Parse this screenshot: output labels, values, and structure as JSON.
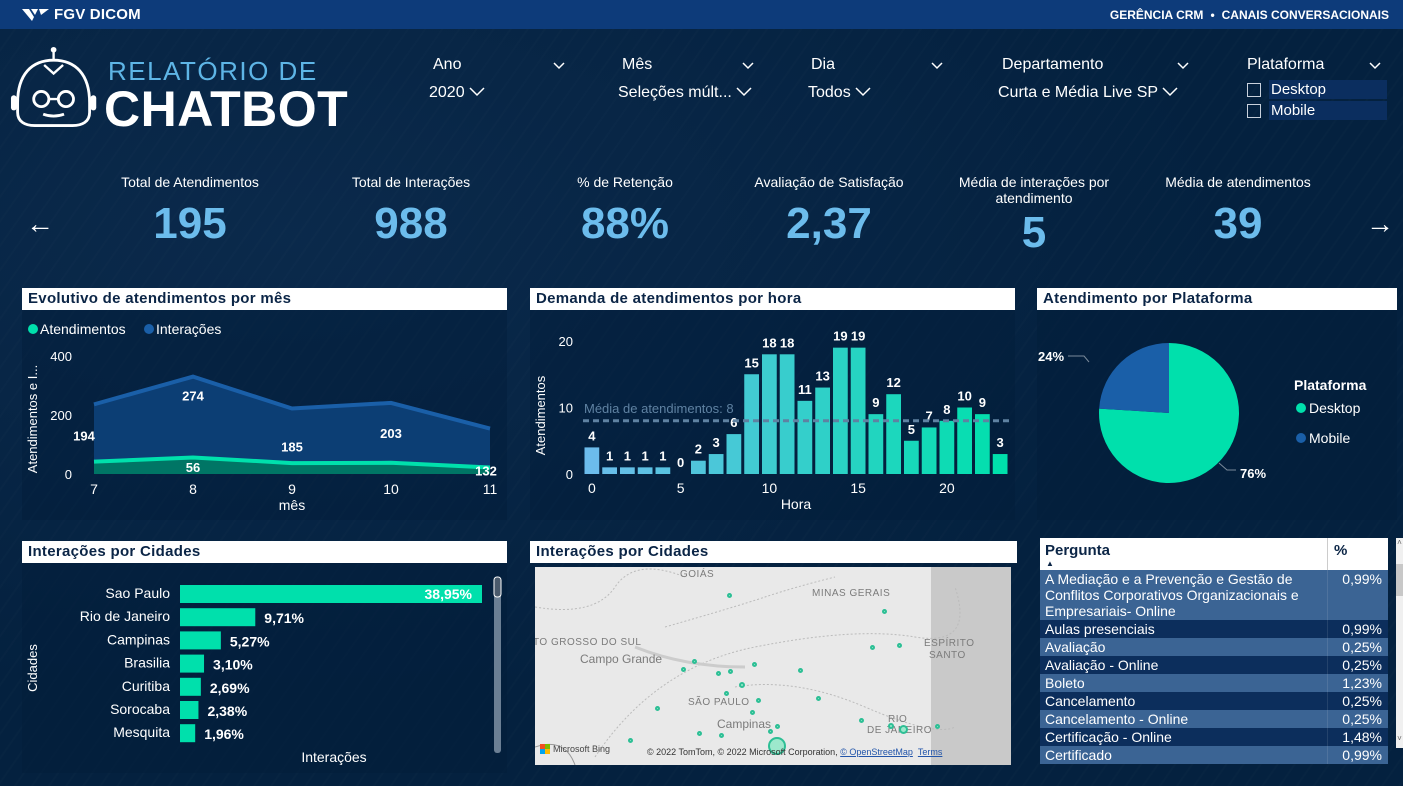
{
  "topbar": {
    "brand": "FGV DICOM",
    "right_part1": "GERÊNCIA CRM",
    "separator": "•",
    "right_part2": "CANAIS CONVERSACIONAIS"
  },
  "logo": {
    "line1": "RELATÓRIO DE",
    "line2": "CHATBOT",
    "icon": "robot-icon"
  },
  "filters": {
    "ano": {
      "label": "Ano",
      "value": "2020"
    },
    "mes": {
      "label": "Mês",
      "value": "Seleções múlt..."
    },
    "dia": {
      "label": "Dia",
      "value": "Todos"
    },
    "departamento": {
      "label": "Departamento",
      "value": "Curta e Média Live SP"
    },
    "plataforma": {
      "label": "Plataforma",
      "options": [
        "Desktop",
        "Mobile"
      ]
    }
  },
  "kpis": [
    {
      "label": "Total de Atendimentos",
      "value": "195"
    },
    {
      "label": "Total de Interações",
      "value": "988"
    },
    {
      "label": "% de Retenção",
      "value": "88%"
    },
    {
      "label": "Avaliação de Satisfação",
      "value": "2,37"
    },
    {
      "label": "Média de interações por atendimento",
      "value": "5"
    },
    {
      "label": "Média de atendimentos",
      "value": "39"
    }
  ],
  "nav": {
    "prev": "←",
    "next": "→"
  },
  "cards": {
    "monthly": "Evolutivo de atendimentos por mês",
    "hourly": "Demanda de atendimentos por hora",
    "platform": "Atendimento por Plataforma",
    "cities_bar": "Interações por Cidades",
    "cities_map": "Interações por Cidades"
  },
  "colors": {
    "teal": "#00e0ac",
    "blue": "#1a5fa8",
    "kpi_value": "#6cbcec",
    "background": "#04213f",
    "topbar": "#0d3b7a"
  },
  "chart_data": [
    {
      "type": "area",
      "title": "Evolutivo de atendimentos por mês",
      "stacked": true,
      "x": [
        7,
        8,
        9,
        10,
        11
      ],
      "xlabel": "mês",
      "ylabel": "Atendimentos e I...",
      "ylim": [
        0,
        400
      ],
      "yticks": [
        0,
        200,
        400
      ],
      "legend": "top-left",
      "series": [
        {
          "name": "Atendimentos",
          "color": "#00e0ac",
          "values": [
            42,
            56,
            37,
            38,
            22
          ],
          "labels": [
            null,
            "56",
            null,
            null,
            null
          ]
        },
        {
          "name": "Interações",
          "color": "#1a5fa8",
          "values": [
            194,
            274,
            185,
            203,
            132
          ],
          "labels": [
            "194",
            "274",
            "185",
            "203",
            "132"
          ]
        }
      ]
    },
    {
      "type": "bar",
      "title": "Demanda de atendimentos por hora",
      "x": [
        0,
        1,
        2,
        3,
        4,
        5,
        6,
        7,
        8,
        9,
        10,
        11,
        12,
        13,
        14,
        15,
        16,
        17,
        18,
        19,
        20,
        21,
        22,
        23
      ],
      "values": [
        4,
        1,
        1,
        1,
        1,
        0,
        2,
        3,
        6,
        15,
        18,
        18,
        11,
        13,
        19,
        19,
        9,
        12,
        5,
        7,
        8,
        10,
        9,
        3
      ],
      "xlabel": "Hora",
      "ylabel": "Atendimentos",
      "ylim": [
        0,
        21
      ],
      "yticks": [
        0,
        10,
        20
      ],
      "xticks": [
        0,
        5,
        10,
        15,
        20
      ],
      "reference_line": {
        "label": "Média de atendimentos: 8",
        "value": 8
      }
    },
    {
      "type": "pie",
      "title": "Atendimento por Plataforma",
      "legend_title": "Plataforma",
      "legend": "right",
      "slices": [
        {
          "name": "Desktop",
          "value": 76,
          "label": "76%",
          "color": "#00e0ac"
        },
        {
          "name": "Mobile",
          "value": 24,
          "label": "24%",
          "color": "#1a5fa8"
        }
      ]
    },
    {
      "type": "bar",
      "orientation": "horizontal",
      "title": "Interações por Cidades",
      "xlabel": "Interações",
      "ylabel": "Cidades",
      "categories": [
        "Sao Paulo",
        "Rio de Janeiro",
        "Campinas",
        "Brasilia",
        "Curitiba",
        "Sorocaba",
        "Mesquita"
      ],
      "values": [
        38.95,
        9.71,
        5.27,
        3.1,
        2.69,
        2.38,
        1.96
      ],
      "labels": [
        "38,95%",
        "9,71%",
        "5,27%",
        "3,10%",
        "2,69%",
        "2,38%",
        "1,96%"
      ]
    }
  ],
  "map": {
    "regions": [
      "GOIÁS",
      "MINAS GERAIS",
      "TO GROSSO DO SUL",
      "ESPÍRITO",
      "SANTO",
      "SÃO PAULO",
      "RIO",
      "DE JANEIRO"
    ],
    "cities": [
      "Campo Grande",
      "Campinas",
      "São Paulo"
    ],
    "bing": "Microsoft Bing",
    "copyright": "© 2022 TomTom, © 2022 Microsoft Corporation, ",
    "osm": "© OpenStreetMap",
    "terms": "Terms"
  },
  "table": {
    "headers": [
      "Pergunta",
      "%"
    ],
    "rows": [
      [
        "A Mediação e a Prevenção e Gestão de Conflitos Corporativos Organizacionais e Empresariais- Online",
        "0,99%"
      ],
      [
        "Aulas presenciais",
        "0,99%"
      ],
      [
        "Avaliação",
        "0,25%"
      ],
      [
        "Avaliação - Online",
        "0,25%"
      ],
      [
        "Boleto",
        "1,23%"
      ],
      [
        "Cancelamento",
        "0,25%"
      ],
      [
        "Cancelamento - Online",
        "0,25%"
      ],
      [
        "Certificação - Online",
        "1,48%"
      ],
      [
        "Certificado",
        "0,99%"
      ]
    ]
  }
}
